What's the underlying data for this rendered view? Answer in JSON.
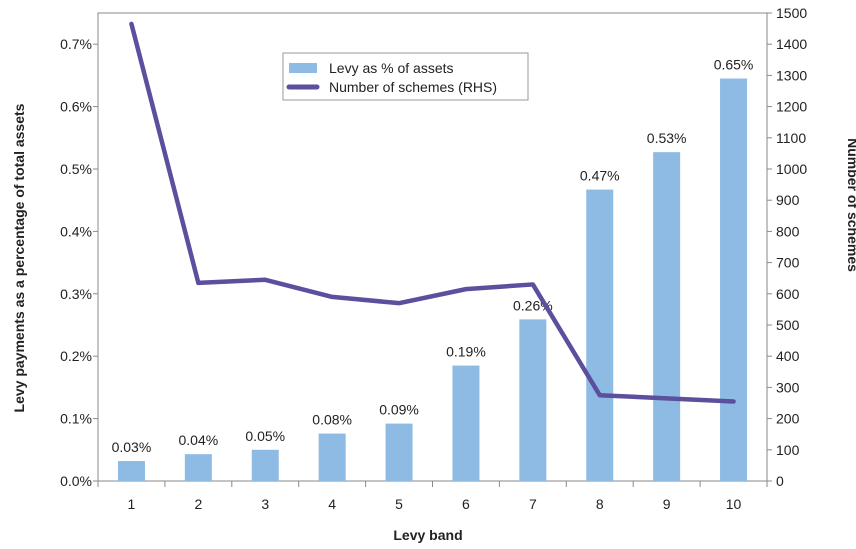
{
  "chart_data": {
    "type": "bar",
    "categories": [
      "1",
      "2",
      "3",
      "4",
      "5",
      "6",
      "7",
      "8",
      "9",
      "10"
    ],
    "series": [
      {
        "name": "Levy as % of assets",
        "type": "bar",
        "axis": "left",
        "values": [
          0.032,
          0.043,
          0.05,
          0.076,
          0.092,
          0.185,
          0.259,
          0.467,
          0.527,
          0.645
        ],
        "labels": [
          "0.03%",
          "0.04%",
          "0.05%",
          "0.08%",
          "0.09%",
          "0.19%",
          "0.26%",
          "0.47%",
          "0.53%",
          "0.65%"
        ],
        "color": "#8dbbe3"
      },
      {
        "name": "Number of schemes (RHS)",
        "type": "line",
        "axis": "right",
        "values": [
          1465,
          635,
          645,
          590,
          570,
          615,
          630,
          275,
          265,
          255
        ],
        "color": "#5b4f9e"
      }
    ],
    "xlabel": "Levy band",
    "ylabel": "Levy payments as a percentage of total assets",
    "y2label": "Number of schemes",
    "ylim": [
      0,
      0.75
    ],
    "y2lim": [
      0,
      1500
    ],
    "yticks": [
      "0.0%",
      "0.1%",
      "0.2%",
      "0.3%",
      "0.4%",
      "0.5%",
      "0.6%",
      "0.7%"
    ],
    "y2ticks": [
      "0",
      "100",
      "200",
      "300",
      "400",
      "500",
      "600",
      "700",
      "800",
      "900",
      "1000",
      "1100",
      "1200",
      "1300",
      "1400",
      "1500"
    ],
    "grid": false,
    "legend": "top-center"
  }
}
